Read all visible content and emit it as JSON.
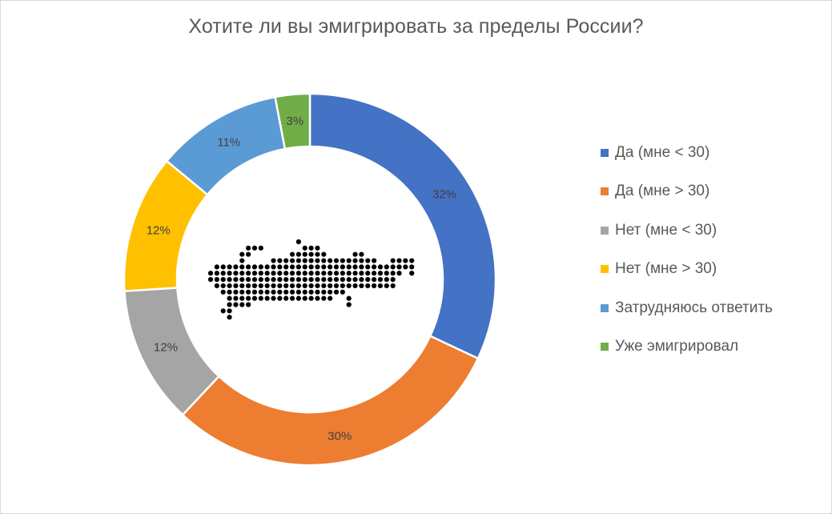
{
  "chart_data": {
    "type": "pie",
    "variant": "doughnut",
    "title": "Хотите ли вы эмигрировать за пределы России?",
    "categories": [
      "Да (мне < 30)",
      "Да (мне > 30)",
      "Нет (мне < 30)",
      "Нет (мне > 30)",
      "Затрудняюсь ответить",
      "Уже эмигрировал"
    ],
    "values": [
      32,
      30,
      12,
      12,
      11,
      3
    ],
    "data_labels": [
      "32%",
      "30%",
      "12%",
      "12%",
      "11%",
      "3%"
    ],
    "colors": [
      "#4472c4",
      "#ed7d31",
      "#a5a5a5",
      "#ffc000",
      "#5b9bd5",
      "#70ad47"
    ],
    "legend_position": "right",
    "start_angle_deg": 0,
    "direction": "clockwise",
    "center_decoration": "russia-map-dots-icon"
  }
}
